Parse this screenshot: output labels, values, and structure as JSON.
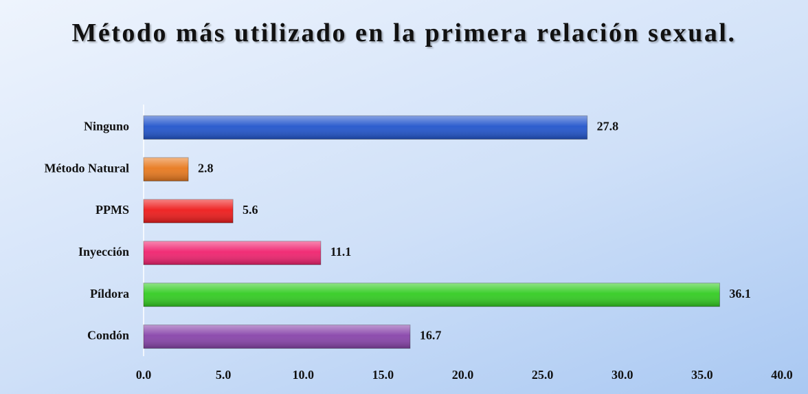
{
  "chart_data": {
    "type": "bar",
    "orientation": "horizontal",
    "title": "Método más utilizado en la primera relación sexual.",
    "categories": [
      "Ninguno",
      "Método Natural",
      "PPMS",
      "Inyección",
      "Píldora",
      "Condón"
    ],
    "values": [
      27.8,
      2.8,
      5.6,
      11.1,
      36.1,
      16.7
    ],
    "colors": [
      "#2255cc",
      "#e8791e",
      "#ee1c1c",
      "#f0236f",
      "#33cc22",
      "#8844aa"
    ],
    "xlim": [
      0,
      40
    ],
    "xticks": [
      {
        "value": 0,
        "label": "0.0"
      },
      {
        "value": 5,
        "label": "5.0"
      },
      {
        "value": 10,
        "label": "10.0"
      },
      {
        "value": 15,
        "label": "15.0"
      },
      {
        "value": 20,
        "label": "20.0"
      },
      {
        "value": 25,
        "label": "25.0"
      },
      {
        "value": 30,
        "label": "30.0"
      },
      {
        "value": 35,
        "label": "35.0"
      },
      {
        "value": 40,
        "label": "40.0"
      }
    ],
    "grid": false
  }
}
